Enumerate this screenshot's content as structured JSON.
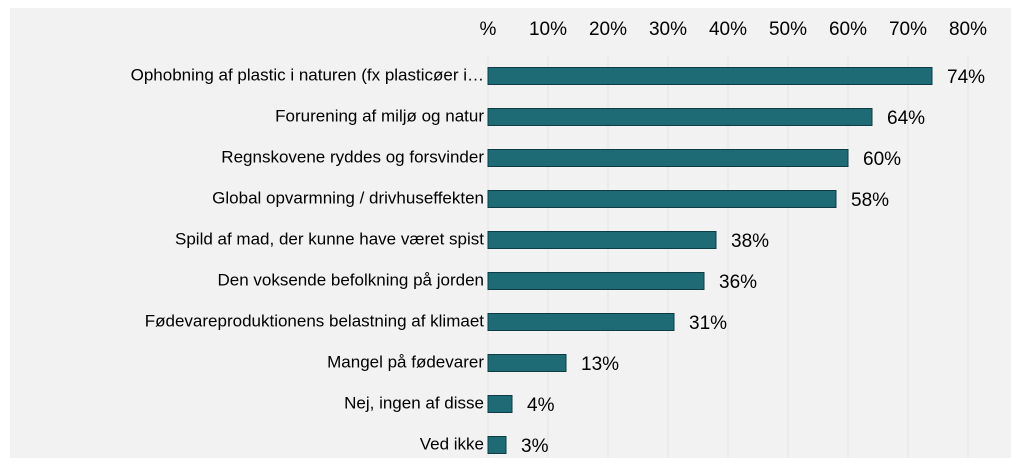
{
  "chart_data": {
    "type": "bar",
    "orientation": "horizontal",
    "categories": [
      "Ophobning af plastic i naturen (fx plasticøer i…",
      "Forurening af miljø og natur",
      "Regnskovene ryddes og forsvinder",
      "Global opvarmning / drivhuseffekten",
      "Spild af mad, der kunne have været spist",
      "Den voksende befolkning på jorden",
      "Fødevareproduktionens belastning af klimaet",
      "Mangel på fødevarer",
      "Nej, ingen af disse",
      "Ved ikke"
    ],
    "values": [
      74,
      64,
      60,
      58,
      38,
      36,
      31,
      13,
      4,
      3
    ],
    "value_labels": [
      "74%",
      "64%",
      "60%",
      "58%",
      "38%",
      "36%",
      "31%",
      "13%",
      "4%",
      "3%"
    ],
    "color": "#1f6b75",
    "xlim": [
      0,
      80
    ],
    "xticks": [
      {
        "value": 0,
        "label": "%"
      },
      {
        "value": 10,
        "label": "10%"
      },
      {
        "value": 20,
        "label": "20%"
      },
      {
        "value": 30,
        "label": "30%"
      },
      {
        "value": 40,
        "label": "40%"
      },
      {
        "value": 50,
        "label": "50%"
      },
      {
        "value": 60,
        "label": "60%"
      },
      {
        "value": 70,
        "label": "70%"
      },
      {
        "value": 80,
        "label": "80%"
      }
    ],
    "grid": true
  }
}
